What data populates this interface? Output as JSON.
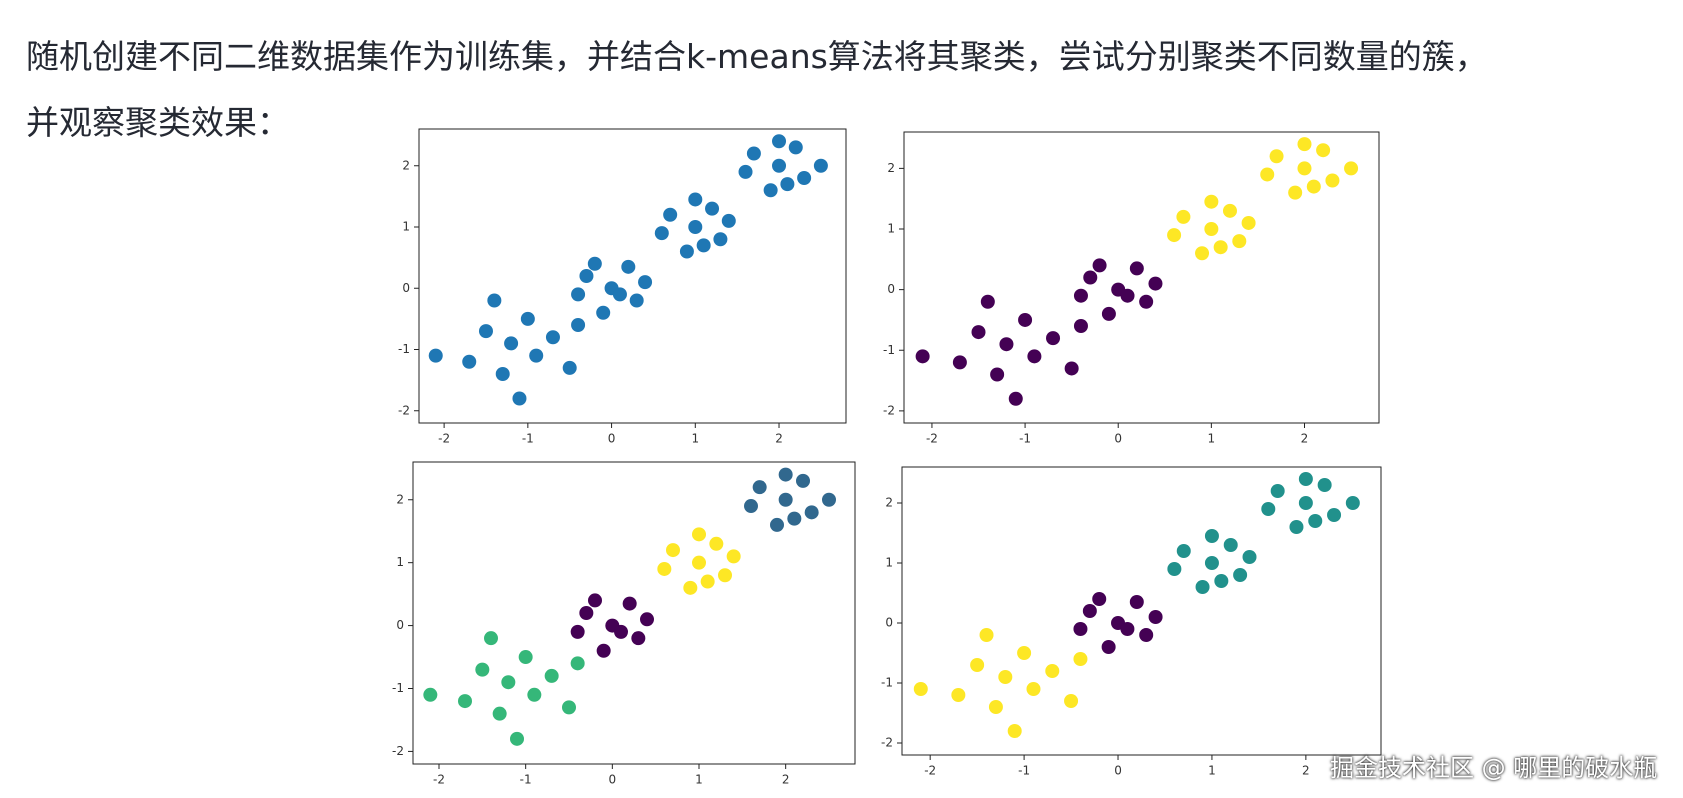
{
  "text": {
    "line1": "随机创建不同二维数据集作为训练集，并结合k-means算法将其聚类，尝试分别聚类不同数量的簇，",
    "line2": "并观察聚类效果："
  },
  "watermark": "掘金技术社区 @ 哪里的破水瓶",
  "chart_data": [
    {
      "type": "scatter",
      "xlim": [
        -2.3,
        2.8
      ],
      "ylim": [
        -2.2,
        2.6
      ],
      "xticks": [
        -2,
        -1,
        0,
        1,
        2
      ],
      "yticks": [
        -2,
        -1,
        0,
        1,
        2
      ],
      "series": [
        {
          "color": "#1f77b4",
          "x": [
            -1.2,
            -0.9,
            -1.5,
            -0.7,
            -1.3,
            -1.0,
            -1.7,
            -0.5,
            -1.1,
            -2.1,
            -0.4,
            -1.4,
            0,
            -0.3,
            0.3,
            -0.1,
            0.2,
            -0.4,
            0.4,
            0.1,
            -0.2,
            1,
            0.7,
            1.3,
            0.9,
            1.2,
            0.6,
            1.4,
            1.0,
            1.1,
            2,
            1.7,
            2.3,
            1.9,
            2.2,
            1.6,
            2.5,
            2.0,
            2.1
          ],
          "y": [
            -0.9,
            -1.1,
            -0.7,
            -0.8,
            -1.4,
            -0.5,
            -1.2,
            -1.3,
            -1.8,
            -1.1,
            -0.6,
            -0.2,
            0,
            0.2,
            -0.2,
            -0.4,
            0.35,
            -0.1,
            0.1,
            -0.1,
            0.4,
            1,
            1.2,
            0.8,
            0.6,
            1.3,
            0.9,
            1.1,
            1.45,
            0.7,
            2,
            2.2,
            1.8,
            1.6,
            2.3,
            1.9,
            2.0,
            2.4,
            1.7
          ]
        }
      ]
    },
    {
      "type": "scatter",
      "xlim": [
        -2.3,
        2.8
      ],
      "ylim": [
        -2.2,
        2.6
      ],
      "xticks": [
        -2,
        -1,
        0,
        1,
        2
      ],
      "yticks": [
        -2,
        -1,
        0,
        1,
        2
      ],
      "series": [
        {
          "color": "#440154",
          "x": [
            -1.2,
            -0.9,
            -1.5,
            -0.7,
            -1.3,
            -1.0,
            -1.7,
            -0.5,
            -1.1,
            -2.1,
            -0.4,
            -1.4,
            0,
            -0.3,
            0.3,
            -0.1,
            0.2,
            -0.4,
            0.4,
            0.1,
            -0.2
          ],
          "y": [
            -0.9,
            -1.1,
            -0.7,
            -0.8,
            -1.4,
            -0.5,
            -1.2,
            -1.3,
            -1.8,
            -1.1,
            -0.6,
            -0.2,
            0,
            0.2,
            -0.2,
            -0.4,
            0.35,
            -0.1,
            0.1,
            -0.1,
            0.4
          ]
        },
        {
          "color": "#fde725",
          "x": [
            1,
            0.7,
            1.3,
            0.9,
            1.2,
            0.6,
            1.4,
            1.0,
            1.1,
            2,
            1.7,
            2.3,
            1.9,
            2.2,
            1.6,
            2.5,
            2.0,
            2.1
          ],
          "y": [
            1,
            1.2,
            0.8,
            0.6,
            1.3,
            0.9,
            1.1,
            1.45,
            0.7,
            2,
            2.2,
            1.8,
            1.6,
            2.3,
            1.9,
            2.0,
            2.4,
            1.7
          ]
        }
      ]
    },
    {
      "type": "scatter",
      "xlim": [
        -2.3,
        2.8
      ],
      "ylim": [
        -2.2,
        2.6
      ],
      "xticks": [
        -2,
        -1,
        0,
        1,
        2
      ],
      "yticks": [
        -2,
        -1,
        0,
        1,
        2
      ],
      "series": [
        {
          "color": "#35b779",
          "x": [
            -1.2,
            -0.9,
            -1.5,
            -0.7,
            -1.3,
            -1.0,
            -1.7,
            -0.5,
            -1.1,
            -2.1,
            -0.4,
            -1.4
          ],
          "y": [
            -0.9,
            -1.1,
            -0.7,
            -0.8,
            -1.4,
            -0.5,
            -1.2,
            -1.3,
            -1.8,
            -1.1,
            -0.6,
            -0.2
          ]
        },
        {
          "color": "#440154",
          "x": [
            0,
            -0.3,
            0.3,
            -0.1,
            0.2,
            -0.4,
            0.4,
            0.1,
            -0.2
          ],
          "y": [
            0,
            0.2,
            -0.2,
            -0.4,
            0.35,
            -0.1,
            0.1,
            -0.1,
            0.4
          ]
        },
        {
          "color": "#fde725",
          "x": [
            1,
            0.7,
            1.3,
            0.9,
            1.2,
            0.6,
            1.4,
            1.0,
            1.1
          ],
          "y": [
            1,
            1.2,
            0.8,
            0.6,
            1.3,
            0.9,
            1.1,
            1.45,
            0.7
          ]
        },
        {
          "color": "#31688e",
          "x": [
            2,
            1.7,
            2.3,
            1.9,
            2.2,
            1.6,
            2.5,
            2.0,
            2.1
          ],
          "y": [
            2,
            2.2,
            1.8,
            1.6,
            2.3,
            1.9,
            2.0,
            2.4,
            1.7
          ]
        }
      ]
    },
    {
      "type": "scatter",
      "xlim": [
        -2.3,
        2.8
      ],
      "ylim": [
        -2.2,
        2.6
      ],
      "xticks": [
        -2,
        -1,
        0,
        1,
        2
      ],
      "yticks": [
        -2,
        -1,
        0,
        1,
        2
      ],
      "series": [
        {
          "color": "#fde725",
          "x": [
            -1.2,
            -0.9,
            -1.5,
            -0.7,
            -1.3,
            -1.0,
            -1.7,
            -0.5,
            -1.1,
            -2.1,
            -0.4,
            -1.4
          ],
          "y": [
            -0.9,
            -1.1,
            -0.7,
            -0.8,
            -1.4,
            -0.5,
            -1.2,
            -1.3,
            -1.8,
            -1.1,
            -0.6,
            -0.2
          ]
        },
        {
          "color": "#440154",
          "x": [
            0,
            -0.3,
            0.3,
            -0.1,
            0.2,
            -0.4,
            0.4,
            0.1,
            -0.2
          ],
          "y": [
            0,
            0.2,
            -0.2,
            -0.4,
            0.35,
            -0.1,
            0.1,
            -0.1,
            0.4
          ]
        },
        {
          "color": "#21918c",
          "x": [
            1,
            0.7,
            1.3,
            0.9,
            1.2,
            0.6,
            1.4,
            1.0,
            1.1,
            2,
            1.7,
            2.3,
            1.9,
            2.2,
            1.6,
            2.5,
            2.0,
            2.1
          ],
          "y": [
            1,
            1.2,
            0.8,
            0.6,
            1.3,
            0.9,
            1.1,
            1.45,
            0.7,
            2,
            2.2,
            1.8,
            1.6,
            2.3,
            1.9,
            2.0,
            2.4,
            1.7
          ]
        }
      ]
    }
  ]
}
